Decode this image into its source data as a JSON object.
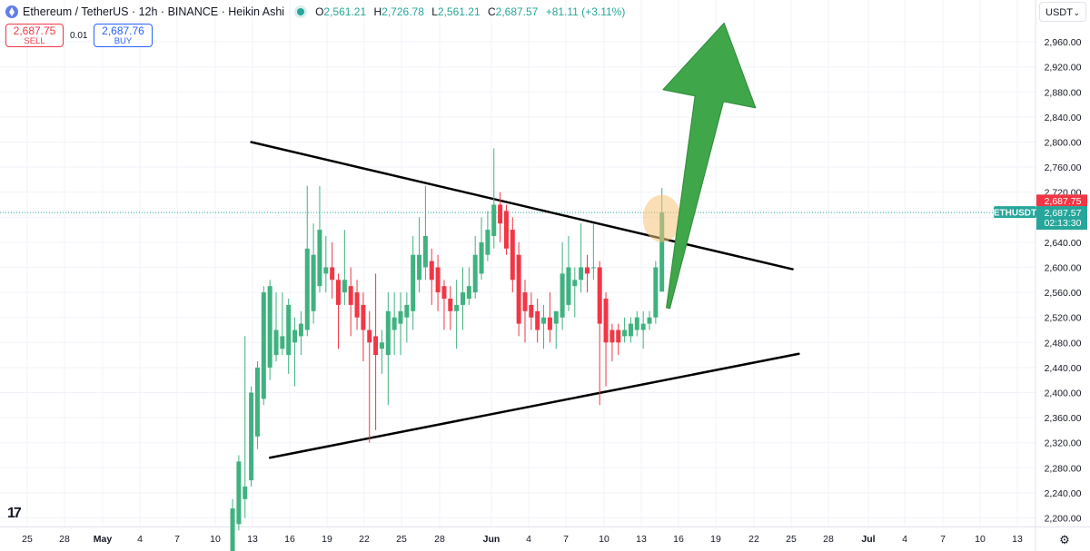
{
  "header": {
    "symbol_title": "Ethereum / TetherUS · 12h · BINANCE · Heikin Ashi",
    "ohlc": [
      {
        "key": "O",
        "value": "2,561.21"
      },
      {
        "key": "H",
        "value": "2,726.78"
      },
      {
        "key": "L",
        "value": "2,561.21"
      },
      {
        "key": "C",
        "value": "2,687.57"
      }
    ],
    "change": "+81.11 (+3.11%)"
  },
  "trade": {
    "sell_price": "2,687.75",
    "sell_label": "SELL",
    "spread": "0.01",
    "buy_price": "2,687.76",
    "buy_label": "BUY"
  },
  "currency_select": {
    "value": "USDT"
  },
  "price_scale": {
    "labels": [
      "2,960.00",
      "2,920.00",
      "2,880.00",
      "2,840.00",
      "2,800.00",
      "2,760.00",
      "2,720.00",
      "2,680.00",
      "2,640.00",
      "2,600.00",
      "2,560.00",
      "2,520.00",
      "2,480.00",
      "2,440.00",
      "2,400.00",
      "2,360.00",
      "2,320.00",
      "2,280.00",
      "2,240.00",
      "2,200.00"
    ],
    "ask_label": "2,687.75",
    "last_price_label": "2,687.57",
    "countdown": "02:13:30",
    "symbol_tag": "ETHUSDT"
  },
  "time_scale": {
    "labels": [
      "25",
      "28",
      "May",
      "4",
      "7",
      "10",
      "13",
      "16",
      "19",
      "22",
      "25",
      "28",
      "Jun",
      "4",
      "7",
      "10",
      "13",
      "16",
      "19",
      "22",
      "25",
      "28",
      "Jul",
      "4",
      "7",
      "10",
      "13"
    ]
  },
  "colors": {
    "up": "#26a69a",
    "up_candle": "#3fb27f",
    "down": "#f23645",
    "trendline": "#000000",
    "arrow": "#3fa64a",
    "highlight": "#f5c27a"
  },
  "chart_data": {
    "type": "candlestick",
    "style": "Heikin Ashi",
    "interval": "12h",
    "ylim": [
      2190,
      2995
    ],
    "last_price": 2687.57,
    "candles": [
      {
        "date": "2024-05-08 12:00",
        "o": 2130,
        "h": 2230,
        "l": 2120,
        "c": 2215
      },
      {
        "date": "2024-05-09 00:00",
        "o": 2190,
        "h": 2300,
        "l": 2180,
        "c": 2290
      },
      {
        "date": "2024-05-09 12:00",
        "o": 2230,
        "h": 2490,
        "l": 2200,
        "c": 2250
      },
      {
        "date": "2024-05-10 00:00",
        "o": 2260,
        "h": 2410,
        "l": 2250,
        "c": 2400
      },
      {
        "date": "2024-05-10 12:00",
        "o": 2330,
        "h": 2450,
        "l": 2310,
        "c": 2440
      },
      {
        "date": "2024-05-11 00:00",
        "o": 2390,
        "h": 2570,
        "l": 2380,
        "c": 2560
      },
      {
        "date": "2024-05-11 12:00",
        "o": 2440,
        "h": 2580,
        "l": 2420,
        "c": 2570
      },
      {
        "date": "2024-05-12 00:00",
        "o": 2460,
        "h": 2560,
        "l": 2450,
        "c": 2500
      },
      {
        "date": "2024-05-12 12:00",
        "o": 2470,
        "h": 2560,
        "l": 2460,
        "c": 2490
      },
      {
        "date": "2024-05-13 00:00",
        "o": 2460,
        "h": 2550,
        "l": 2430,
        "c": 2540
      },
      {
        "date": "2024-05-13 12:00",
        "o": 2480,
        "h": 2520,
        "l": 2410,
        "c": 2500
      },
      {
        "date": "2024-05-14 00:00",
        "o": 2490,
        "h": 2530,
        "l": 2460,
        "c": 2510
      },
      {
        "date": "2024-05-14 12:00",
        "o": 2500,
        "h": 2730,
        "l": 2490,
        "c": 2630
      },
      {
        "date": "2024-05-15 00:00",
        "o": 2530,
        "h": 2670,
        "l": 2510,
        "c": 2620
      },
      {
        "date": "2024-05-15 12:00",
        "o": 2570,
        "h": 2730,
        "l": 2560,
        "c": 2660
      },
      {
        "date": "2024-05-16 00:00",
        "o": 2590,
        "h": 2650,
        "l": 2560,
        "c": 2600
      },
      {
        "date": "2024-05-16 12:00",
        "o": 2600,
        "h": 2640,
        "l": 2550,
        "c": 2580
      },
      {
        "date": "2024-05-17 00:00",
        "o": 2580,
        "h": 2590,
        "l": 2470,
        "c": 2540
      },
      {
        "date": "2024-05-17 12:00",
        "o": 2560,
        "h": 2660,
        "l": 2540,
        "c": 2580
      },
      {
        "date": "2024-05-18 00:00",
        "o": 2570,
        "h": 2600,
        "l": 2490,
        "c": 2540
      },
      {
        "date": "2024-05-18 12:00",
        "o": 2560,
        "h": 2580,
        "l": 2500,
        "c": 2520
      },
      {
        "date": "2024-05-19 00:00",
        "o": 2540,
        "h": 2560,
        "l": 2450,
        "c": 2500
      },
      {
        "date": "2024-05-19 12:00",
        "o": 2500,
        "h": 2530,
        "l": 2320,
        "c": 2480
      },
      {
        "date": "2024-05-20 00:00",
        "o": 2490,
        "h": 2590,
        "l": 2340,
        "c": 2460
      },
      {
        "date": "2024-05-20 12:00",
        "o": 2470,
        "h": 2500,
        "l": 2430,
        "c": 2480
      },
      {
        "date": "2024-05-21 00:00",
        "o": 2460,
        "h": 2560,
        "l": 2380,
        "c": 2530
      },
      {
        "date": "2024-05-21 12:00",
        "o": 2500,
        "h": 2560,
        "l": 2460,
        "c": 2520
      },
      {
        "date": "2024-05-22 00:00",
        "o": 2510,
        "h": 2560,
        "l": 2460,
        "c": 2530
      },
      {
        "date": "2024-05-22 12:00",
        "o": 2520,
        "h": 2560,
        "l": 2480,
        "c": 2540
      },
      {
        "date": "2024-05-23 00:00",
        "o": 2530,
        "h": 2650,
        "l": 2500,
        "c": 2620
      },
      {
        "date": "2024-05-23 12:00",
        "o": 2580,
        "h": 2680,
        "l": 2560,
        "c": 2620
      },
      {
        "date": "2024-05-24 00:00",
        "o": 2600,
        "h": 2730,
        "l": 2580,
        "c": 2650
      },
      {
        "date": "2024-05-24 12:00",
        "o": 2610,
        "h": 2630,
        "l": 2540,
        "c": 2580
      },
      {
        "date": "2024-05-25 00:00",
        "o": 2600,
        "h": 2620,
        "l": 2530,
        "c": 2560
      },
      {
        "date": "2024-05-25 12:00",
        "o": 2570,
        "h": 2580,
        "l": 2500,
        "c": 2550
      },
      {
        "date": "2024-05-26 00:00",
        "o": 2550,
        "h": 2570,
        "l": 2500,
        "c": 2530
      },
      {
        "date": "2024-05-26 12:00",
        "o": 2530,
        "h": 2580,
        "l": 2470,
        "c": 2540
      },
      {
        "date": "2024-05-27 00:00",
        "o": 2540,
        "h": 2600,
        "l": 2500,
        "c": 2560
      },
      {
        "date": "2024-05-27 12:00",
        "o": 2550,
        "h": 2600,
        "l": 2540,
        "c": 2570
      },
      {
        "date": "2024-05-28 00:00",
        "o": 2560,
        "h": 2650,
        "l": 2550,
        "c": 2620
      },
      {
        "date": "2024-05-28 12:00",
        "o": 2590,
        "h": 2680,
        "l": 2580,
        "c": 2640
      },
      {
        "date": "2024-05-29 00:00",
        "o": 2620,
        "h": 2690,
        "l": 2610,
        "c": 2660
      },
      {
        "date": "2024-05-29 12:00",
        "o": 2650,
        "h": 2790,
        "l": 2630,
        "c": 2700
      },
      {
        "date": "2024-05-30 00:00",
        "o": 2700,
        "h": 2720,
        "l": 2640,
        "c": 2670
      },
      {
        "date": "2024-05-30 12:00",
        "o": 2690,
        "h": 2700,
        "l": 2620,
        "c": 2630
      },
      {
        "date": "2024-05-31 00:00",
        "o": 2660,
        "h": 2680,
        "l": 2560,
        "c": 2580
      },
      {
        "date": "2024-05-31 12:00",
        "o": 2620,
        "h": 2640,
        "l": 2490,
        "c": 2510
      },
      {
        "date": "2024-06-01 00:00",
        "o": 2560,
        "h": 2580,
        "l": 2480,
        "c": 2530
      },
      {
        "date": "2024-06-01 12:00",
        "o": 2540,
        "h": 2560,
        "l": 2500,
        "c": 2520
      },
      {
        "date": "2024-06-02 00:00",
        "o": 2530,
        "h": 2550,
        "l": 2480,
        "c": 2500
      },
      {
        "date": "2024-06-02 12:00",
        "o": 2510,
        "h": 2540,
        "l": 2470,
        "c": 2520
      },
      {
        "date": "2024-06-03 00:00",
        "o": 2520,
        "h": 2560,
        "l": 2480,
        "c": 2500
      },
      {
        "date": "2024-06-03 12:00",
        "o": 2510,
        "h": 2530,
        "l": 2470,
        "c": 2530
      },
      {
        "date": "2024-06-04 00:00",
        "o": 2520,
        "h": 2640,
        "l": 2500,
        "c": 2590
      },
      {
        "date": "2024-06-04 12:00",
        "o": 2540,
        "h": 2650,
        "l": 2530,
        "c": 2600
      },
      {
        "date": "2024-06-05 00:00",
        "o": 2570,
        "h": 2600,
        "l": 2520,
        "c": 2580
      },
      {
        "date": "2024-06-05 12:00",
        "o": 2580,
        "h": 2670,
        "l": 2560,
        "c": 2600
      },
      {
        "date": "2024-06-06 00:00",
        "o": 2600,
        "h": 2620,
        "l": 2560,
        "c": 2590
      },
      {
        "date": "2024-06-06 12:00",
        "o": 2600,
        "h": 2670,
        "l": 2580,
        "c": 2600
      },
      {
        "date": "2024-06-07 00:00",
        "o": 2600,
        "h": 2610,
        "l": 2380,
        "c": 2510
      },
      {
        "date": "2024-06-07 12:00",
        "o": 2550,
        "h": 2560,
        "l": 2410,
        "c": 2480
      },
      {
        "date": "2024-06-08 00:00",
        "o": 2500,
        "h": 2510,
        "l": 2450,
        "c": 2480
      },
      {
        "date": "2024-06-08 12:00",
        "o": 2500,
        "h": 2510,
        "l": 2460,
        "c": 2480
      },
      {
        "date": "2024-06-09 00:00",
        "o": 2490,
        "h": 2520,
        "l": 2480,
        "c": 2500
      },
      {
        "date": "2024-06-09 12:00",
        "o": 2490,
        "h": 2520,
        "l": 2480,
        "c": 2510
      },
      {
        "date": "2024-06-10 00:00",
        "o": 2500,
        "h": 2530,
        "l": 2490,
        "c": 2520
      },
      {
        "date": "2024-06-10 12:00",
        "o": 2500,
        "h": 2530,
        "l": 2470,
        "c": 2510
      },
      {
        "date": "2024-06-11 00:00",
        "o": 2510,
        "h": 2530,
        "l": 2500,
        "c": 2520
      },
      {
        "date": "2024-06-11 12:00",
        "o": 2520,
        "h": 2610,
        "l": 2510,
        "c": 2600
      },
      {
        "date": "2024-06-12 00:00",
        "o": 2561.21,
        "h": 2726.78,
        "l": 2561.21,
        "c": 2687.57
      }
    ],
    "trendlines": [
      {
        "name": "upper",
        "from": {
          "date": "2024-05-10 00:00",
          "price": 2800
        },
        "to": {
          "date": "2024-06-22 12:00",
          "price": 2597
        }
      },
      {
        "name": "lower",
        "from": {
          "date": "2024-05-11 12:00",
          "price": 2296
        },
        "to": {
          "date": "2024-06-23 00:00",
          "price": 2462
        }
      }
    ],
    "annotations": {
      "highlight_circle_at": {
        "date": "2024-06-12 00:00",
        "price": 2678
      },
      "arrow": {
        "from": {
          "date": "2024-06-12 12:00",
          "price": 2535
        },
        "to": {
          "date": "2024-06-17 00:00",
          "price": 2990
        }
      }
    }
  }
}
